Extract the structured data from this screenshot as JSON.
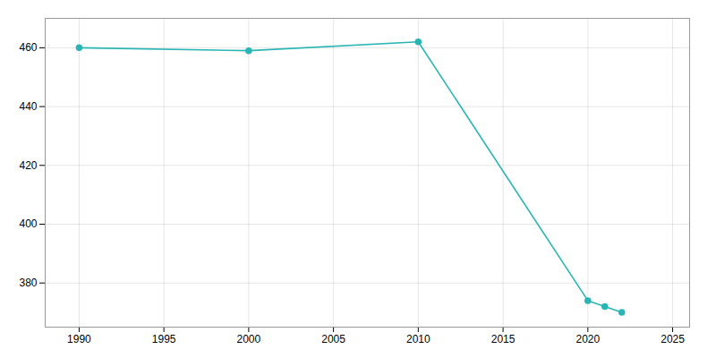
{
  "chart_data": {
    "type": "line",
    "x": [
      1990,
      2000,
      2010,
      2020,
      2021,
      2022
    ],
    "values": [
      460,
      459,
      462,
      374,
      372,
      370
    ],
    "color": "#2ab5b5",
    "marker": "circle",
    "xlim": [
      1988,
      2026
    ],
    "ylim": [
      365,
      470
    ],
    "xticks": [
      1990,
      1995,
      2000,
      2005,
      2010,
      2015,
      2020,
      2025
    ],
    "yticks": [
      380,
      400,
      420,
      440,
      460
    ],
    "grid": true
  }
}
